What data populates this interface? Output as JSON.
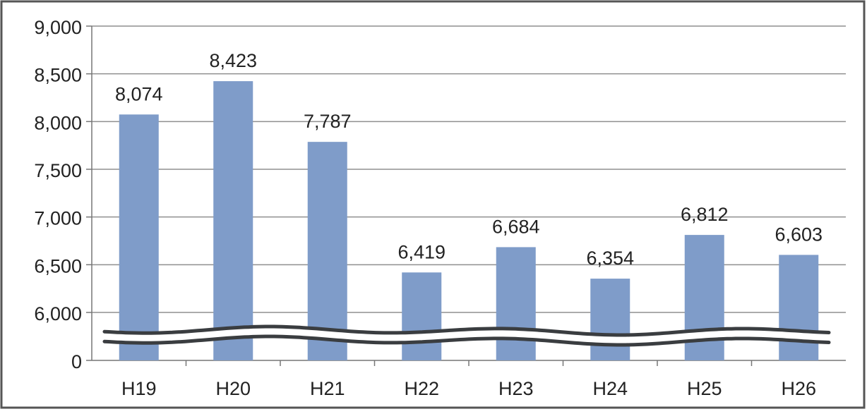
{
  "chart_data": {
    "type": "bar",
    "title": "",
    "xlabel": "",
    "ylabel": "",
    "categories": [
      "H19",
      "H20",
      "H21",
      "H22",
      "H23",
      "H24",
      "H25",
      "H26"
    ],
    "values": [
      8074,
      8423,
      7787,
      6419,
      6684,
      6354,
      6812,
      6603
    ],
    "data_labels": [
      "8,074",
      "8,423",
      "7,787",
      "6,419",
      "6,684",
      "6,354",
      "6,812",
      "6,603"
    ],
    "y_ticks": [
      0,
      6000,
      6500,
      7000,
      7500,
      8000,
      8500,
      9000
    ],
    "y_tick_labels": [
      "0",
      "6,000",
      "6,500",
      "7,000",
      "7,500",
      "8,000",
      "8,500",
      "9,000"
    ],
    "ylim": [
      5500,
      9000
    ],
    "axis_break": true,
    "grid": true,
    "legend": "none",
    "bar_color": "#7f9cc9",
    "grid_color": "#8f8f8f",
    "break_line_color": "#3a3d40"
  }
}
